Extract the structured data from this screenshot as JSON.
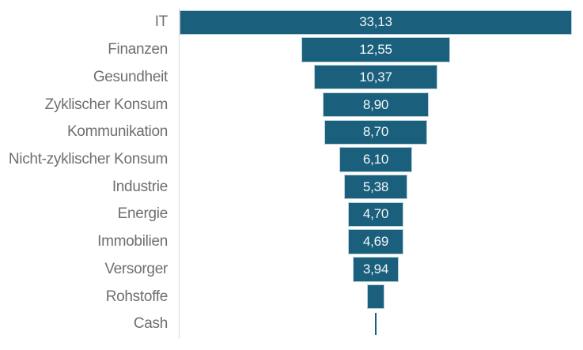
{
  "chart_data": {
    "type": "bar",
    "subtype": "funnel",
    "orientation": "horizontal",
    "title": "",
    "xlabel": "",
    "ylabel": "",
    "categories": [
      "IT",
      "Finanzen",
      "Gesundheit",
      "Zyklischer Konsum",
      "Kommunikation",
      "Nicht-zyklischer Konsum",
      "Industrie",
      "Energie",
      "Immobilien",
      "Versorger",
      "Rohstoffe",
      "Cash"
    ],
    "values": [
      33.13,
      12.55,
      10.37,
      8.9,
      8.7,
      6.1,
      5.38,
      4.7,
      4.69,
      3.94,
      1.5,
      0.05
    ],
    "value_labels": [
      "33,13",
      "12,55",
      "10,37",
      "8,90",
      "8,70",
      "6,10",
      "5,38",
      "4,70",
      "4,69",
      "3,94",
      "",
      ""
    ],
    "xlim": [
      0,
      33.13
    ],
    "bars_centered": true,
    "value_label_position": "inside-center",
    "decimal_separator": ",",
    "legend": "none",
    "gridlines": "off",
    "category_axis_line": true
  },
  "colors": {
    "bar_fill": "#1A5F7C",
    "bar_stroke": "#B7CFDC",
    "value_text": "#F4F7F9",
    "category_text": "#6F6F6F",
    "axis_line": "#DCDCDC",
    "background": "#FFFFFF"
  }
}
